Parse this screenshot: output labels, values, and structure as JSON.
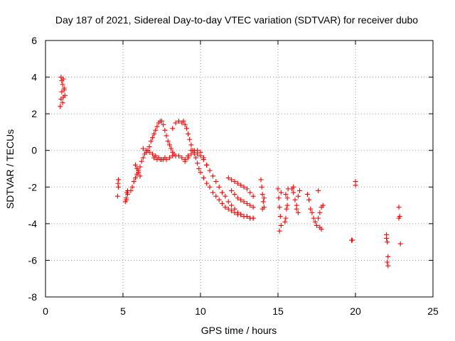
{
  "chart_data": {
    "type": "scatter",
    "title": "Day 187 of 2021, Sidereal Day-to-day VTEC variation (SDTVAR) for receiver dubo",
    "xlabel": "GPS time / hours",
    "ylabel": "SDTVAR / TECUs",
    "xlim": [
      0,
      25
    ],
    "ylim": [
      -8,
      6
    ],
    "xticks": [
      0,
      5,
      10,
      15,
      20,
      25
    ],
    "yticks": [
      -8,
      -6,
      -4,
      -2,
      0,
      2,
      4,
      6
    ],
    "xtick_labels": [
      "0",
      "5",
      "10",
      "15",
      "20",
      "25"
    ],
    "ytick_labels": [
      "-8",
      "-6",
      "-4",
      "-2",
      "0",
      "2",
      "4",
      "6"
    ],
    "grid": true,
    "marker": "+",
    "color": "#ff0000",
    "series": [
      {
        "name": "SDTVAR",
        "x": [
          0.95,
          1.0,
          1.05,
          1.1,
          1.15,
          1.2,
          1.25,
          1.0,
          1.1,
          1.05,
          1.15,
          1.2,
          4.65,
          4.7,
          4.68,
          4.7,
          5.15,
          5.2,
          5.25,
          5.3,
          5.22,
          5.3,
          5.5,
          5.6,
          5.7,
          5.8,
          5.9,
          6.0,
          6.1,
          6.2,
          6.3,
          6.4,
          6.5,
          6.6,
          6.7,
          6.8,
          6.9,
          7.0,
          7.1,
          7.2,
          7.3,
          7.4,
          7.5,
          7.6,
          7.7,
          7.8,
          7.9,
          8.0,
          8.1,
          8.2,
          8.3,
          5.8,
          5.9,
          6.0,
          6.1,
          6.3,
          6.5,
          6.7,
          6.9,
          7.1,
          7.3,
          7.5,
          7.7,
          7.0,
          7.2,
          7.4,
          7.6,
          7.8,
          8.0,
          8.2,
          8.4,
          8.6,
          8.8,
          9.0,
          9.2,
          9.4,
          9.6,
          9.8,
          10.0,
          10.2,
          10.4,
          10.6,
          10.8,
          11.0,
          11.2,
          11.4,
          11.6,
          11.8,
          12.0,
          12.2,
          12.4,
          12.6,
          12.8,
          13.0,
          13.2,
          13.4,
          8.2,
          8.4,
          8.6,
          8.8,
          8.9,
          9.0,
          9.1,
          9.2,
          9.3,
          9.4,
          9.5,
          9.6,
          9.7,
          9.8,
          9.9,
          10.0,
          10.2,
          10.4,
          10.6,
          10.8,
          11.0,
          11.2,
          11.4,
          11.6,
          11.8,
          12.0,
          12.2,
          12.4,
          12.6,
          12.8,
          13.0,
          13.2,
          13.4,
          9.0,
          9.2,
          9.4,
          9.6,
          9.8,
          10.0,
          10.2,
          10.4,
          11.8,
          12.0,
          12.2,
          12.4,
          12.6,
          12.8,
          13.0,
          13.2,
          13.4,
          12.0,
          12.2,
          12.4,
          12.6,
          12.8,
          13.0,
          13.2,
          13.4,
          13.9,
          13.95,
          14.0,
          14.05,
          14.1,
          14.0,
          14.1,
          15.0,
          15.05,
          15.1,
          15.15,
          15.2,
          15.1,
          15.2,
          15.45,
          15.5,
          15.55,
          15.6,
          15.65,
          15.5,
          15.6,
          15.9,
          16.0,
          16.1,
          16.2,
          16.3,
          16.4,
          16.0,
          16.2,
          16.3,
          16.9,
          17.0,
          17.1,
          17.2,
          17.3,
          17.4,
          17.5,
          17.6,
          17.7,
          17.8,
          17.9,
          17.6,
          17.7,
          17.8,
          19.75,
          19.8,
          20.0,
          20.0,
          22.0,
          22.05,
          22.1,
          22.05,
          22.1,
          22.0,
          22.8,
          22.85,
          22.9,
          22.8
        ],
        "y": [
          2.4,
          2.8,
          3.2,
          3.6,
          3.9,
          3.4,
          3.0,
          4.0,
          2.6,
          3.8,
          2.9,
          3.3,
          -2.5,
          -2.0,
          -1.8,
          -1.6,
          -2.8,
          -2.6,
          -2.3,
          -2.2,
          -2.7,
          -2.4,
          -2.2,
          -2.0,
          -1.7,
          -1.5,
          -1.3,
          -1.1,
          -0.9,
          -0.6,
          -0.4,
          -0.2,
          -0.1,
          0.0,
          0.2,
          0.5,
          0.7,
          0.9,
          1.1,
          1.3,
          1.5,
          1.6,
          1.6,
          1.4,
          1.1,
          0.8,
          0.5,
          0.3,
          0.1,
          -0.1,
          -0.2,
          -0.8,
          -1.0,
          -1.2,
          -1.4,
          0.1,
          0.0,
          -0.1,
          -0.2,
          -0.3,
          -0.4,
          -0.5,
          -0.4,
          -0.4,
          -0.5,
          -0.5,
          -0.5,
          -0.5,
          -0.4,
          -0.3,
          -0.3,
          -0.3,
          -0.4,
          -0.5,
          -0.4,
          -0.2,
          0.0,
          0.0,
          -0.1,
          -0.4,
          -0.8,
          -1.1,
          -1.4,
          -1.7,
          -2.0,
          -2.3,
          -2.5,
          -2.8,
          -3.0,
          -3.2,
          -3.4,
          -3.5,
          -3.6,
          -3.6,
          -3.7,
          -3.7,
          1.2,
          1.5,
          1.6,
          1.5,
          1.6,
          1.4,
          1.2,
          0.9,
          0.6,
          0.3,
          0.0,
          -0.2,
          -0.4,
          -0.7,
          -1.0,
          -1.2,
          -1.5,
          -1.8,
          -2.0,
          -2.3,
          -2.5,
          -2.7,
          -2.9,
          -3.1,
          -3.2,
          -3.3,
          -3.4,
          -3.5,
          -3.5,
          -3.6,
          -3.6,
          -3.7,
          -3.7,
          -0.6,
          -0.3,
          0.0,
          -0.1,
          -0.2,
          -0.3,
          -0.5,
          -0.8,
          -1.5,
          -1.6,
          -1.7,
          -1.8,
          -1.9,
          -2.0,
          -2.1,
          -2.3,
          -2.5,
          -2.2,
          -2.4,
          -2.6,
          -2.7,
          -2.8,
          -2.9,
          -3.0,
          -3.1,
          -1.6,
          -2.0,
          -2.4,
          -2.8,
          -3.1,
          -3.2,
          -2.6,
          -2.1,
          -2.6,
          -3.1,
          -3.6,
          -4.1,
          -4.4,
          -2.3,
          -3.9,
          -3.7,
          -3.2,
          -2.6,
          -2.1,
          -2.4,
          -3.0,
          -2.1,
          -2.3,
          -2.7,
          -3.0,
          -2.5,
          -2.2,
          -2.0,
          -3.2,
          -3.4,
          -2.4,
          -2.7,
          -3.2,
          -3.4,
          -3.7,
          -3.9,
          -4.1,
          -3.7,
          -3.4,
          -3.1,
          -3.0,
          -2.2,
          -4.2,
          -4.3,
          -4.9,
          -4.9,
          -1.9,
          -1.7,
          -4.6,
          -5.0,
          -5.8,
          -6.1,
          -6.3,
          -4.8,
          -3.1,
          -3.6,
          -5.1,
          -3.7
        ]
      }
    ]
  }
}
